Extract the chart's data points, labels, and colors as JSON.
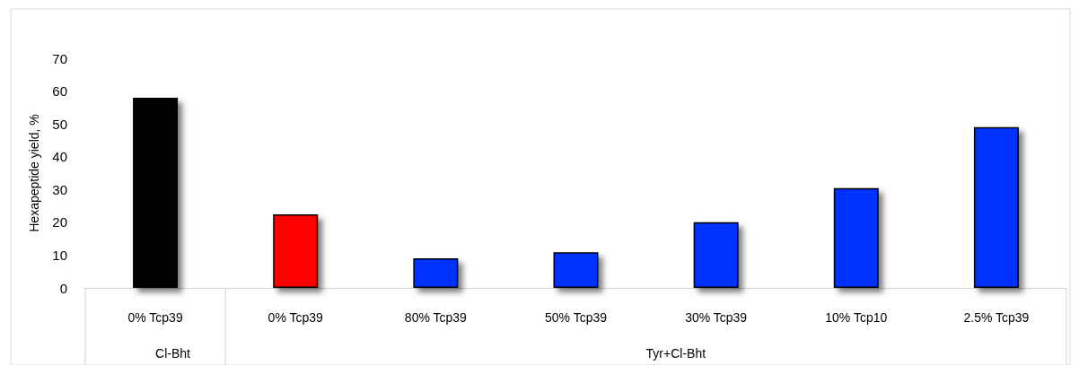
{
  "chart_data": {
    "type": "bar",
    "ylabel": "Hexapeptide yield, %",
    "categories": [
      "0% Tcp39",
      "0% Tcp39",
      "80% Tcp39",
      "50% Tcp39",
      "30% Tcp39",
      "10% Tcp10",
      "2.5% Tcp39"
    ],
    "values": [
      58,
      22.4,
      9,
      10.9,
      20,
      30.4,
      49
    ],
    "colors": [
      "#000000",
      "#ff0000",
      "#0433ff",
      "#0433ff",
      "#0433ff",
      "#0433ff",
      "#0433ff"
    ],
    "ylim": [
      0,
      70
    ],
    "yticks": [
      0,
      10,
      20,
      30,
      40,
      50,
      60,
      70
    ],
    "grid": false,
    "annotations": [
      "Cl-Bht",
      "Tyr+Cl-Bht"
    ]
  }
}
